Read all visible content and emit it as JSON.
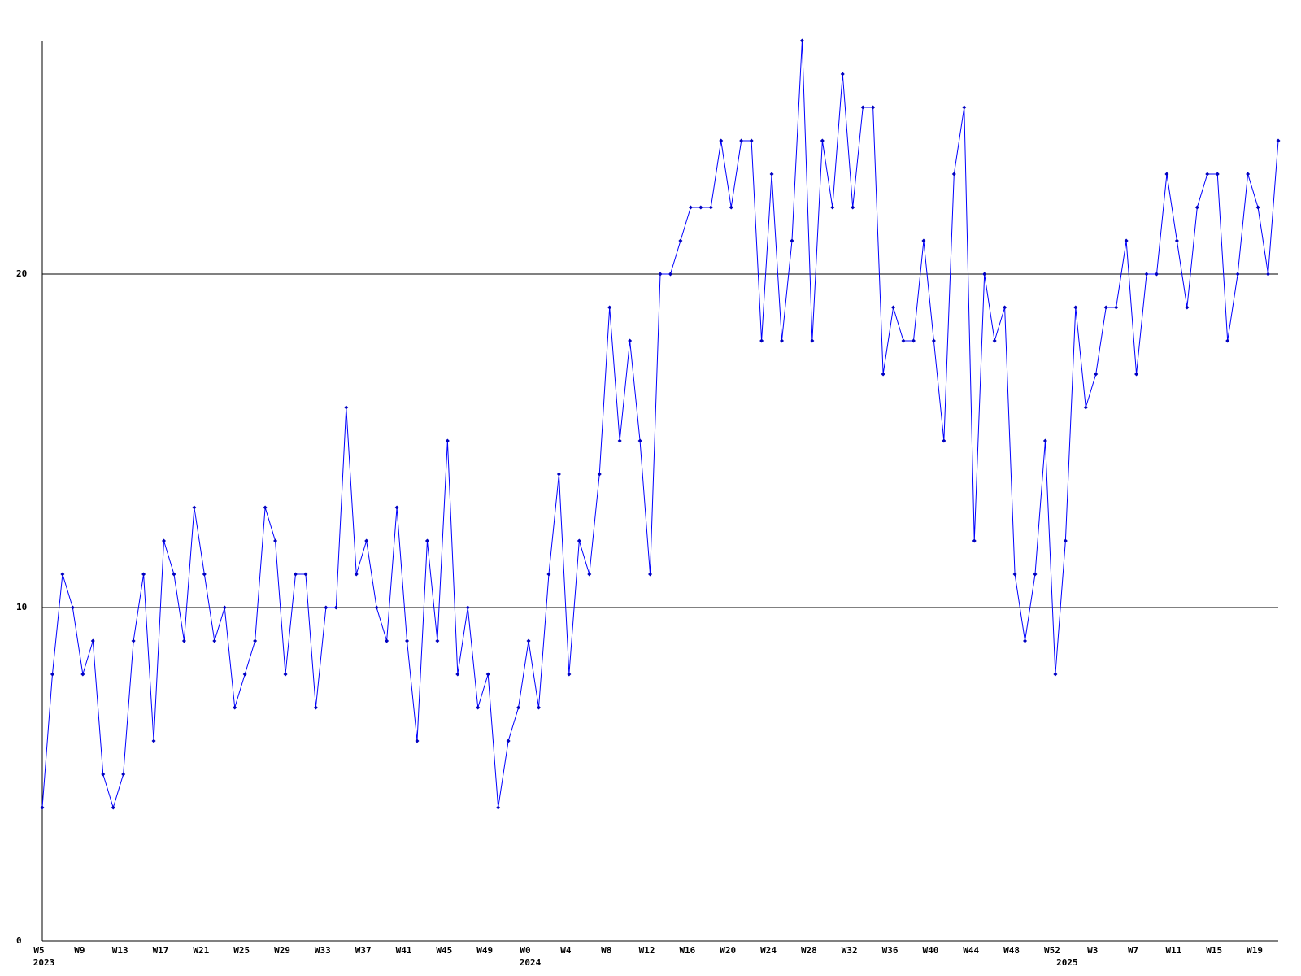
{
  "chart_data": {
    "type": "line",
    "color": "#0000ff",
    "marker_color": "#0000c0",
    "ylim": [
      0,
      27
    ],
    "yticks": [
      0,
      10,
      20
    ],
    "grid": true,
    "categories": [
      "W5",
      null,
      null,
      null,
      "W9",
      null,
      null,
      null,
      "W13",
      null,
      null,
      null,
      "W17",
      null,
      null,
      null,
      "W21",
      null,
      null,
      null,
      "W25",
      null,
      null,
      null,
      "W29",
      null,
      null,
      null,
      "W33",
      null,
      null,
      null,
      "W37",
      null,
      null,
      null,
      "W41",
      null,
      null,
      null,
      "W45",
      null,
      null,
      null,
      "W49",
      null,
      null,
      null,
      "W0",
      null,
      null,
      null,
      "W4",
      null,
      null,
      null,
      "W8",
      null,
      null,
      null,
      "W12",
      null,
      null,
      null,
      "W16",
      null,
      null,
      null,
      "W20",
      null,
      null,
      null,
      "W24",
      null,
      null,
      null,
      "W28",
      null,
      null,
      null,
      "W32",
      null,
      null,
      null,
      "W36",
      null,
      null,
      null,
      "W40",
      null,
      null,
      null,
      "W44",
      null,
      null,
      null,
      "W48",
      null,
      null,
      null,
      "W52",
      null,
      null,
      null,
      "W3",
      null,
      null,
      null,
      "W7",
      null,
      null,
      null,
      "W11",
      null,
      null,
      null,
      "W15",
      null,
      null,
      null,
      "W19",
      null,
      null
    ],
    "x_years": [
      "2023",
      null,
      null,
      null,
      null,
      null,
      null,
      null,
      null,
      null,
      null,
      null,
      null,
      null,
      null,
      null,
      null,
      null,
      null,
      null,
      null,
      null,
      null,
      null,
      null,
      null,
      null,
      null,
      null,
      null,
      null,
      null,
      null,
      null,
      null,
      null,
      null,
      null,
      null,
      null,
      null,
      null,
      null,
      null,
      null,
      null,
      null,
      null,
      "2024",
      null,
      null,
      null,
      null,
      null,
      null,
      null,
      null,
      null,
      null,
      null,
      null,
      null,
      null,
      null,
      null,
      null,
      null,
      null,
      null,
      null,
      null,
      null,
      null,
      null,
      null,
      null,
      null,
      null,
      null,
      null,
      null,
      null,
      null,
      null,
      null,
      null,
      null,
      null,
      null,
      null,
      null,
      null,
      null,
      null,
      null,
      null,
      null,
      null,
      null,
      null,
      null,
      "2025",
      null,
      null,
      null,
      null,
      null,
      null,
      null,
      null,
      null,
      null,
      null,
      null,
      null,
      null,
      null,
      null,
      null,
      null,
      null,
      null,
      null
    ],
    "values": [
      4,
      8,
      11,
      10,
      8,
      9,
      5,
      4,
      5,
      9,
      11,
      6,
      12,
      11,
      9,
      13,
      11,
      9,
      10,
      7,
      8,
      9,
      13,
      12,
      8,
      11,
      11,
      7,
      10,
      10,
      16,
      11,
      12,
      10,
      9,
      13,
      9,
      6,
      12,
      9,
      15,
      8,
      10,
      7,
      8,
      4,
      6,
      7,
      9,
      7,
      11,
      14,
      8,
      12,
      11,
      14,
      19,
      15,
      18,
      15,
      11,
      20,
      20,
      21,
      22,
      22,
      22,
      24,
      22,
      24,
      24,
      18,
      23,
      18,
      21,
      27,
      18,
      24,
      22,
      26,
      22,
      25,
      25,
      17,
      19,
      18,
      18,
      21,
      18,
      15,
      23,
      25,
      12,
      20,
      18,
      19,
      11,
      9,
      11,
      15,
      8,
      12,
      19,
      16,
      17,
      19,
      19,
      21,
      17,
      20,
      20,
      23,
      21,
      19,
      22,
      23,
      23,
      18,
      20,
      23,
      22,
      20,
      24
    ]
  }
}
